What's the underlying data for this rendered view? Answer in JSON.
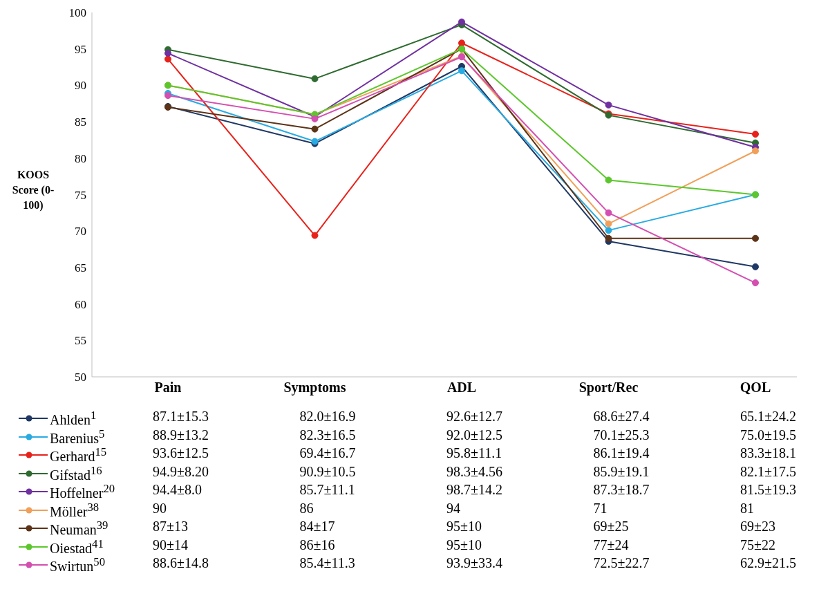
{
  "chart_data": {
    "type": "line",
    "ylabel": "KOOS Score (0-100)",
    "categories": [
      "Pain",
      "Symptoms",
      "ADL",
      "Sport/Rec",
      "QOL"
    ],
    "ylim": [
      50,
      100
    ],
    "yticks": [
      50,
      55,
      60,
      65,
      70,
      75,
      80,
      85,
      90,
      95,
      100
    ],
    "legend": "bottom",
    "marker": "circle",
    "line_style": "solid",
    "series": [
      {
        "name": "Ahlden$^{1}$",
        "color": "#1f3864",
        "values": [
          87.1,
          82.0,
          92.6,
          68.6,
          65.1
        ],
        "value_labels": [
          "87.1±15.3",
          "82.0±16.9",
          "92.6±12.7",
          "68.6±27.4",
          "65.1±24.2"
        ]
      },
      {
        "name": "Barenius$^{5}$",
        "color": "#29abe2",
        "values": [
          88.9,
          82.3,
          92.0,
          70.1,
          75.0
        ],
        "value_labels": [
          "88.9±13.2",
          "82.3±16.5",
          "92.0±12.5",
          "70.1±25.3",
          "75.0±19.5"
        ]
      },
      {
        "name": "Gerhard$^{15}$",
        "color": "#e8221b",
        "values": [
          93.6,
          69.4,
          95.8,
          86.1,
          83.3
        ],
        "value_labels": [
          "93.6±12.5",
          "69.4±16.7",
          "95.8±11.1",
          "86.1±19.4",
          "83.3±18.1"
        ]
      },
      {
        "name": "Gifstad$^{16}$",
        "color": "#2e6b30",
        "values": [
          94.9,
          90.9,
          98.3,
          85.9,
          82.1
        ],
        "value_labels": [
          "94.9±8.20",
          "90.9±10.5",
          "98.3±4.56",
          "85.9±19.1",
          "82.1±17.5"
        ]
      },
      {
        "name": "Hoffelner$^{20}$",
        "color": "#7030a0",
        "values": [
          94.4,
          85.7,
          98.7,
          87.3,
          81.5
        ],
        "value_labels": [
          "94.4±8.0",
          "85.7±11.1",
          "98.7±14.2",
          "87.3±18.7",
          "81.5±19.3"
        ]
      },
      {
        "name": "Möller$^{38}$",
        "color": "#f0a05a",
        "values": [
          90,
          86,
          94,
          71,
          81
        ],
        "value_labels": [
          "90",
          "86",
          "94",
          "71",
          "81"
        ]
      },
      {
        "name": "Neuman$^{39}$",
        "color": "#5c3317",
        "values": [
          87,
          84,
          95,
          69,
          69
        ],
        "value_labels": [
          "87±13",
          "84±17",
          "95±10",
          "69±25",
          "69±23"
        ]
      },
      {
        "name": "Oiestad$^{41}$",
        "color": "#5cc72c",
        "values": [
          90,
          86,
          95,
          77,
          75
        ],
        "value_labels": [
          "90±14",
          "86±16",
          "95±10",
          "77±24",
          "75±22"
        ]
      },
      {
        "name": "Swirtun$^{50}$",
        "color": "#d44fb0",
        "values": [
          88.6,
          85.4,
          93.9,
          72.5,
          62.9
        ],
        "value_labels": [
          "88.6±14.8",
          "85.4±11.3",
          "93.9±33.4",
          "72.5±22.7",
          "62.9±21.5"
        ]
      }
    ]
  }
}
